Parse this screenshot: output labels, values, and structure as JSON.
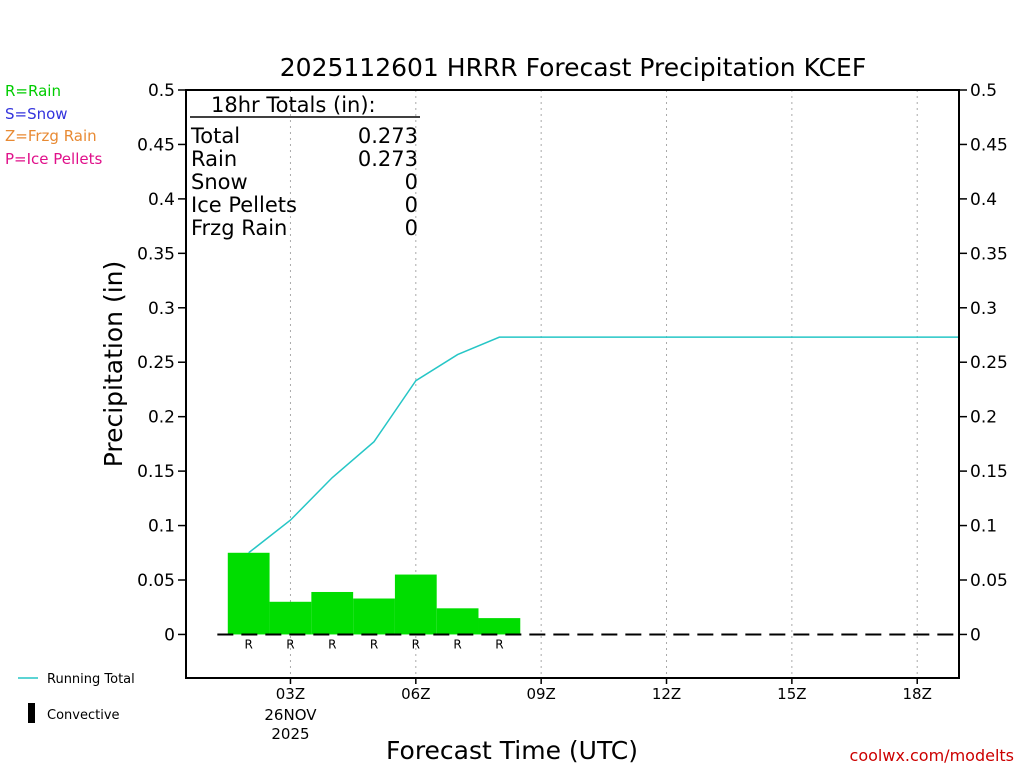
{
  "chart_data": {
    "type": "bar",
    "title": "2025112601 HRRR Forecast Precipitation KCEF",
    "xlabel": "Forecast Time (UTC)",
    "ylabel": "Precipitation (in)",
    "ylim": [
      -0.04,
      0.5
    ],
    "y_ticks": [
      "0",
      "0.05",
      "0.1",
      "0.15",
      "0.2",
      "0.25",
      "0.3",
      "0.35",
      "0.4",
      "0.45",
      "0.5"
    ],
    "x_ticks": [
      {
        "hour": 3,
        "label": "03Z",
        "date": "26NOV",
        "year": "2025"
      },
      {
        "hour": 6,
        "label": "06Z"
      },
      {
        "hour": 9,
        "label": "09Z"
      },
      {
        "hour": 12,
        "label": "12Z"
      },
      {
        "hour": 15,
        "label": "15Z"
      },
      {
        "hour": 18,
        "label": "18Z"
      }
    ],
    "hours": [
      2,
      3,
      4,
      5,
      6,
      7,
      8
    ],
    "hourly_precip": [
      0.075,
      0.03,
      0.039,
      0.033,
      0.055,
      0.024,
      0.015
    ],
    "precip_type_labels": [
      "R",
      "R",
      "R",
      "R",
      "R",
      "R",
      "R"
    ],
    "running_total": {
      "hours": [
        2,
        3,
        4,
        5,
        6,
        7,
        8,
        19
      ],
      "values": [
        0.075,
        0.105,
        0.144,
        0.177,
        0.233,
        0.257,
        0.273,
        0.273
      ]
    },
    "colors": {
      "bars": "#00dd00",
      "running_total": "#26c6c6",
      "rain": "#00cc00",
      "snow": "#3333dd",
      "frzg_rain": "#e88a33",
      "ice_pellets": "#e0108a",
      "attribution": "#cc0000"
    }
  },
  "legend": {
    "rain": "R=Rain",
    "snow": "S=Snow",
    "frzg_rain": "Z=Frzg Rain",
    "ice_pellets": "P=Ice Pellets",
    "running_total": "Running Total",
    "convective": "Convective"
  },
  "totals": {
    "heading": "18hr Totals (in):",
    "rows": [
      {
        "label": "Total",
        "value": "0.273"
      },
      {
        "label": "Rain",
        "value": "0.273"
      },
      {
        "label": "Snow",
        "value": "0"
      },
      {
        "label": "Ice Pellets",
        "value": "0"
      },
      {
        "label": "Frzg Rain",
        "value": "0"
      }
    ]
  },
  "attribution": "coolwx.com/modelts"
}
